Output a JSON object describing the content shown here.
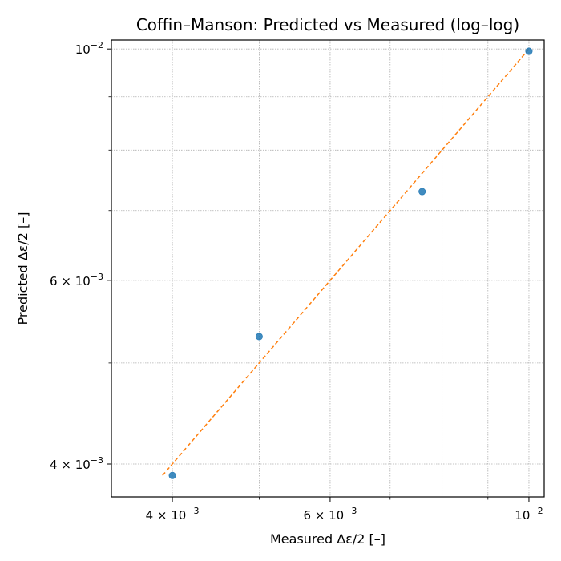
{
  "chart_data": {
    "type": "scatter",
    "title": "Coffin–Manson: Predicted vs Measured (log–log)",
    "xlabel": "Measured Δε/2 [–]",
    "ylabel": "Predicted Δε/2 [–]",
    "x_scale": "log",
    "y_scale": "log",
    "xlim": [
      0.00342,
      0.0104
    ],
    "ylim": [
      0.00372,
      0.0102
    ],
    "grid": true,
    "x_major_ticks": [
      {
        "value": 0.004,
        "mantissa": "4",
        "times": "×",
        "base": "10",
        "exp": "−3"
      },
      {
        "value": 0.006,
        "mantissa": "6",
        "times": "×",
        "base": "10",
        "exp": "−3"
      },
      {
        "value": 0.01,
        "base": "10",
        "exp": "−2"
      }
    ],
    "y_major_ticks": [
      {
        "value": 0.004,
        "mantissa": "4",
        "times": "×",
        "base": "10",
        "exp": "−3"
      },
      {
        "value": 0.006,
        "mantissa": "6",
        "times": "×",
        "base": "10",
        "exp": "−3"
      },
      {
        "value": 0.01,
        "base": "10",
        "exp": "−2"
      }
    ],
    "minor_ticks": [
      0.005,
      0.007,
      0.008,
      0.009
    ],
    "series": [
      {
        "kind": "scatter",
        "color": "#1f77b4",
        "x": [
          0.004,
          0.005,
          0.0076,
          0.01
        ],
        "y": [
          0.0039,
          0.0053,
          0.0073,
          0.00995
        ]
      },
      {
        "kind": "line",
        "style": "dashed",
        "color": "#ff7f0e",
        "x": [
          0.0039,
          0.01
        ],
        "y": [
          0.0039,
          0.01
        ]
      }
    ]
  }
}
